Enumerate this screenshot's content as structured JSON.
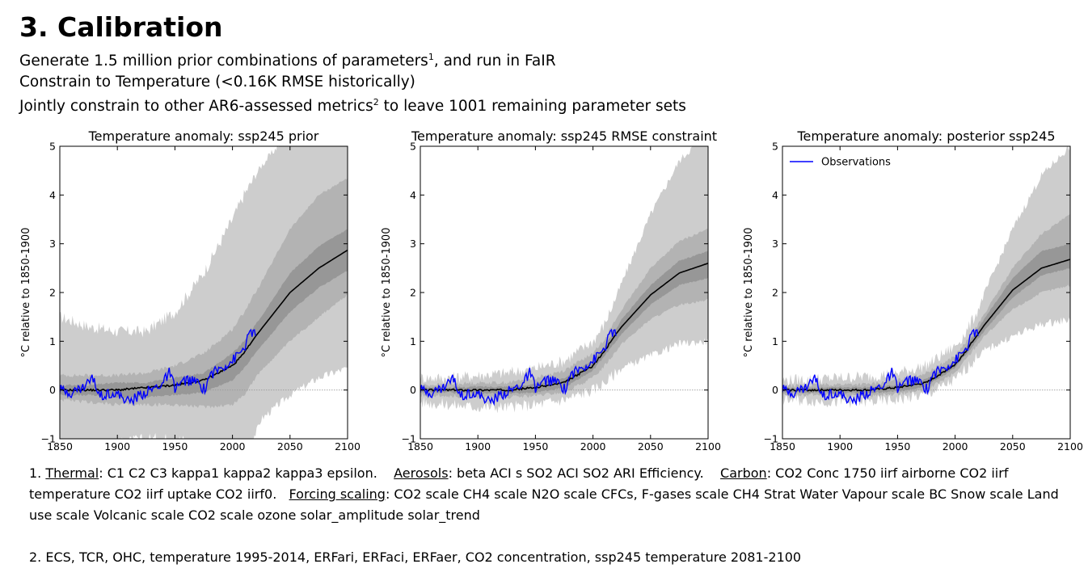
{
  "slide": {
    "title": "3. Calibration",
    "bullets": [
      {
        "text": "Generate 1.5 million prior combinations of parameters",
        "sup": "1",
        "after": ", and run in FaIR"
      },
      {
        "text": "Constrain to Temperature (<0.16K RMSE historically)",
        "sup": "",
        "after": ""
      },
      {
        "text": "Jointly constrain to other AR6-assessed metrics",
        "sup": "2",
        "after": " to leave 1001 remaining parameter sets"
      }
    ]
  },
  "footnotes": {
    "note1": {
      "num": "1. ",
      "thermal_label": "Thermal",
      "thermal_text": ": C1 C2 C3 kappa1 kappa2 kappa3 epsilon.",
      "aerosols_label": "Aerosols",
      "aerosols_text": ": beta ACI s SO2 ACI SO2 ARI Efficiency.",
      "carbon_label": "Carbon",
      "carbon_text": ": CO2 Conc 1750 iirf airborne CO2 iirf temperature CO2 iirf uptake CO2 iirf0.",
      "forcing_label": "Forcing scaling",
      "forcing_text": ": CO2 scale CH4 scale N2O scale CFCs, F-gases scale CH4 Strat Water Vapour scale BC Snow scale Land use scale Volcanic scale CO2 scale ozone solar_amplitude solar_trend"
    },
    "note2": "2. ECS, TCR, OHC, temperature 1995-2014, ERFari, ERFaci, ERFaer, CO2 concentration, ssp245 temperature 2081-2100"
  },
  "colors": {
    "band_outer": "#cdcdcd",
    "band_mid": "#b3b3b3",
    "band_inner": "#979797",
    "band_core": "#7b7b7b",
    "median": "#000000",
    "observations": "#0000ff",
    "zero_line": "#9a9a9a"
  },
  "chart_data": [
    {
      "type": "area",
      "title": "Temperature anomaly: ssp245 prior",
      "ylabel": "°C relative to 1850-1900",
      "xlabel": "",
      "xlim": [
        1850,
        2100
      ],
      "ylim": [
        -1,
        5
      ],
      "xticks": [
        1850,
        1900,
        1950,
        2000,
        2050,
        2100
      ],
      "yticks": [
        -1,
        0,
        1,
        2,
        3,
        4,
        5
      ],
      "legend": null,
      "x": [
        1850,
        1875,
        1900,
        1925,
        1950,
        1975,
        2000,
        2010,
        2020,
        2025,
        2050,
        2075,
        2100
      ],
      "bands": [
        {
          "lower": [
            -1.1,
            -1.1,
            -1.1,
            -1.0,
            -1.0,
            -1.1,
            -1.2,
            -1.1,
            -0.9,
            -0.6,
            -0.1,
            0.25,
            0.45
          ],
          "upper": [
            1.5,
            1.3,
            1.2,
            1.2,
            1.6,
            2.4,
            3.5,
            4.0,
            4.4,
            4.6,
            5.3,
            6.0,
            6.6
          ]
        },
        {
          "lower": [
            -0.2,
            -0.25,
            -0.3,
            -0.3,
            -0.3,
            -0.35,
            -0.3,
            -0.1,
            0.25,
            0.4,
            1.0,
            1.5,
            1.95
          ],
          "upper": [
            0.3,
            0.3,
            0.3,
            0.35,
            0.5,
            0.75,
            1.25,
            1.6,
            2.0,
            2.2,
            3.3,
            4.0,
            4.35
          ]
        },
        {
          "lower": [
            -0.1,
            -0.1,
            -0.15,
            -0.15,
            -0.1,
            -0.05,
            0.2,
            0.45,
            0.75,
            0.9,
            1.6,
            2.1,
            2.45
          ],
          "upper": [
            0.1,
            0.1,
            0.15,
            0.15,
            0.25,
            0.35,
            0.75,
            1.0,
            1.35,
            1.5,
            2.4,
            2.95,
            3.3
          ]
        }
      ],
      "median": [
        0.0,
        0.0,
        0.0,
        0.05,
        0.1,
        0.2,
        0.5,
        0.75,
        1.1,
        1.25,
        2.0,
        2.5,
        2.87
      ],
      "observations": {
        "x": [
          1850,
          1860,
          1870,
          1878,
          1885,
          1895,
          1905,
          1910,
          1920,
          1930,
          1940,
          1945,
          1950,
          1960,
          1970,
          1976,
          1980,
          1990,
          2000,
          2010,
          2016,
          2020
        ],
        "y": [
          0.0,
          -0.05,
          0.05,
          0.25,
          -0.1,
          -0.05,
          -0.15,
          -0.25,
          -0.1,
          0.0,
          0.15,
          0.35,
          0.05,
          0.2,
          0.15,
          0.0,
          0.3,
          0.45,
          0.6,
          0.85,
          1.2,
          1.15
        ]
      }
    },
    {
      "type": "area",
      "title": "Temperature anomaly: ssp245 RMSE constraint",
      "ylabel": "°C relative to 1850-1900",
      "xlabel": "",
      "xlim": [
        1850,
        2100
      ],
      "ylim": [
        -1,
        5
      ],
      "xticks": [
        1850,
        1900,
        1950,
        2000,
        2050,
        2100
      ],
      "yticks": [
        -1,
        0,
        1,
        2,
        3,
        4,
        5
      ],
      "legend": null,
      "x": [
        1850,
        1875,
        1900,
        1925,
        1950,
        1975,
        2000,
        2010,
        2020,
        2025,
        2050,
        2075,
        2100
      ],
      "bands": [
        {
          "lower": [
            -0.25,
            -0.3,
            -0.35,
            -0.35,
            -0.3,
            -0.2,
            0.0,
            0.15,
            0.35,
            0.45,
            0.7,
            0.95,
            1.0
          ],
          "upper": [
            0.25,
            0.25,
            0.3,
            0.35,
            0.45,
            0.6,
            1.0,
            1.35,
            1.9,
            2.2,
            3.6,
            4.7,
            5.3
          ]
        },
        {
          "lower": [
            -0.1,
            -0.12,
            -0.15,
            -0.15,
            -0.12,
            -0.05,
            0.25,
            0.5,
            0.8,
            0.95,
            1.45,
            1.75,
            1.85
          ],
          "upper": [
            0.1,
            0.12,
            0.15,
            0.15,
            0.25,
            0.4,
            0.75,
            1.05,
            1.45,
            1.65,
            2.5,
            3.05,
            3.3
          ]
        },
        {
          "lower": [
            -0.05,
            -0.05,
            -0.07,
            -0.07,
            -0.05,
            0.05,
            0.4,
            0.7,
            1.0,
            1.15,
            1.75,
            2.15,
            2.3
          ],
          "upper": [
            0.05,
            0.05,
            0.07,
            0.07,
            0.12,
            0.25,
            0.6,
            0.9,
            1.25,
            1.45,
            2.15,
            2.65,
            2.85
          ]
        }
      ],
      "median": [
        0.0,
        0.0,
        0.0,
        0.0,
        0.05,
        0.15,
        0.5,
        0.8,
        1.15,
        1.3,
        1.95,
        2.4,
        2.6
      ],
      "observations": {
        "x": [
          1850,
          1860,
          1870,
          1878,
          1885,
          1895,
          1905,
          1910,
          1920,
          1930,
          1940,
          1945,
          1950,
          1960,
          1970,
          1976,
          1980,
          1990,
          2000,
          2010,
          2016,
          2020
        ],
        "y": [
          0.0,
          -0.05,
          0.05,
          0.25,
          -0.1,
          -0.05,
          -0.15,
          -0.25,
          -0.1,
          0.0,
          0.15,
          0.35,
          0.05,
          0.2,
          0.15,
          0.0,
          0.3,
          0.45,
          0.6,
          0.85,
          1.2,
          1.15
        ]
      }
    },
    {
      "type": "area",
      "title": "Temperature anomaly: posterior ssp245",
      "ylabel": "°C relative to 1850-1900",
      "xlabel": "",
      "xlim": [
        1850,
        2100
      ],
      "ylim": [
        -1,
        5
      ],
      "xticks": [
        1850,
        1900,
        1950,
        2000,
        2050,
        2100
      ],
      "yticks": [
        -1,
        0,
        1,
        2,
        3,
        4,
        5
      ],
      "legend": {
        "label": "Observations",
        "position": "top-left"
      },
      "x": [
        1850,
        1875,
        1900,
        1925,
        1950,
        1975,
        2000,
        2010,
        2020,
        2025,
        2050,
        2075,
        2100
      ],
      "bands": [
        {
          "lower": [
            -0.2,
            -0.22,
            -0.25,
            -0.25,
            -0.2,
            -0.1,
            0.2,
            0.45,
            0.7,
            0.8,
            1.1,
            1.35,
            1.45
          ],
          "upper": [
            0.2,
            0.22,
            0.25,
            0.28,
            0.35,
            0.5,
            0.9,
            1.2,
            1.65,
            1.95,
            3.3,
            4.4,
            5.0
          ]
        },
        {
          "lower": [
            -0.08,
            -0.1,
            -0.12,
            -0.12,
            -0.08,
            0.0,
            0.35,
            0.65,
            0.95,
            1.1,
            1.65,
            2.0,
            2.15
          ],
          "upper": [
            0.08,
            0.1,
            0.12,
            0.12,
            0.2,
            0.35,
            0.7,
            1.0,
            1.35,
            1.55,
            2.5,
            3.2,
            3.6
          ]
        },
        {
          "lower": [
            -0.04,
            -0.05,
            -0.06,
            -0.06,
            -0.03,
            0.08,
            0.45,
            0.75,
            1.05,
            1.2,
            1.9,
            2.35,
            2.5
          ],
          "upper": [
            0.04,
            0.05,
            0.06,
            0.06,
            0.1,
            0.22,
            0.6,
            0.9,
            1.25,
            1.45,
            2.3,
            2.85,
            3.0
          ]
        }
      ],
      "median": [
        0.0,
        0.0,
        0.0,
        0.0,
        0.05,
        0.15,
        0.52,
        0.82,
        1.15,
        1.32,
        2.05,
        2.5,
        2.68
      ],
      "observations": {
        "x": [
          1850,
          1860,
          1870,
          1878,
          1885,
          1895,
          1905,
          1910,
          1920,
          1930,
          1940,
          1945,
          1950,
          1960,
          1970,
          1976,
          1980,
          1990,
          2000,
          2010,
          2016,
          2020
        ],
        "y": [
          0.0,
          -0.05,
          0.05,
          0.25,
          -0.1,
          -0.05,
          -0.15,
          -0.25,
          -0.1,
          0.0,
          0.15,
          0.35,
          0.05,
          0.2,
          0.15,
          0.0,
          0.3,
          0.45,
          0.6,
          0.85,
          1.2,
          1.15
        ]
      }
    }
  ]
}
